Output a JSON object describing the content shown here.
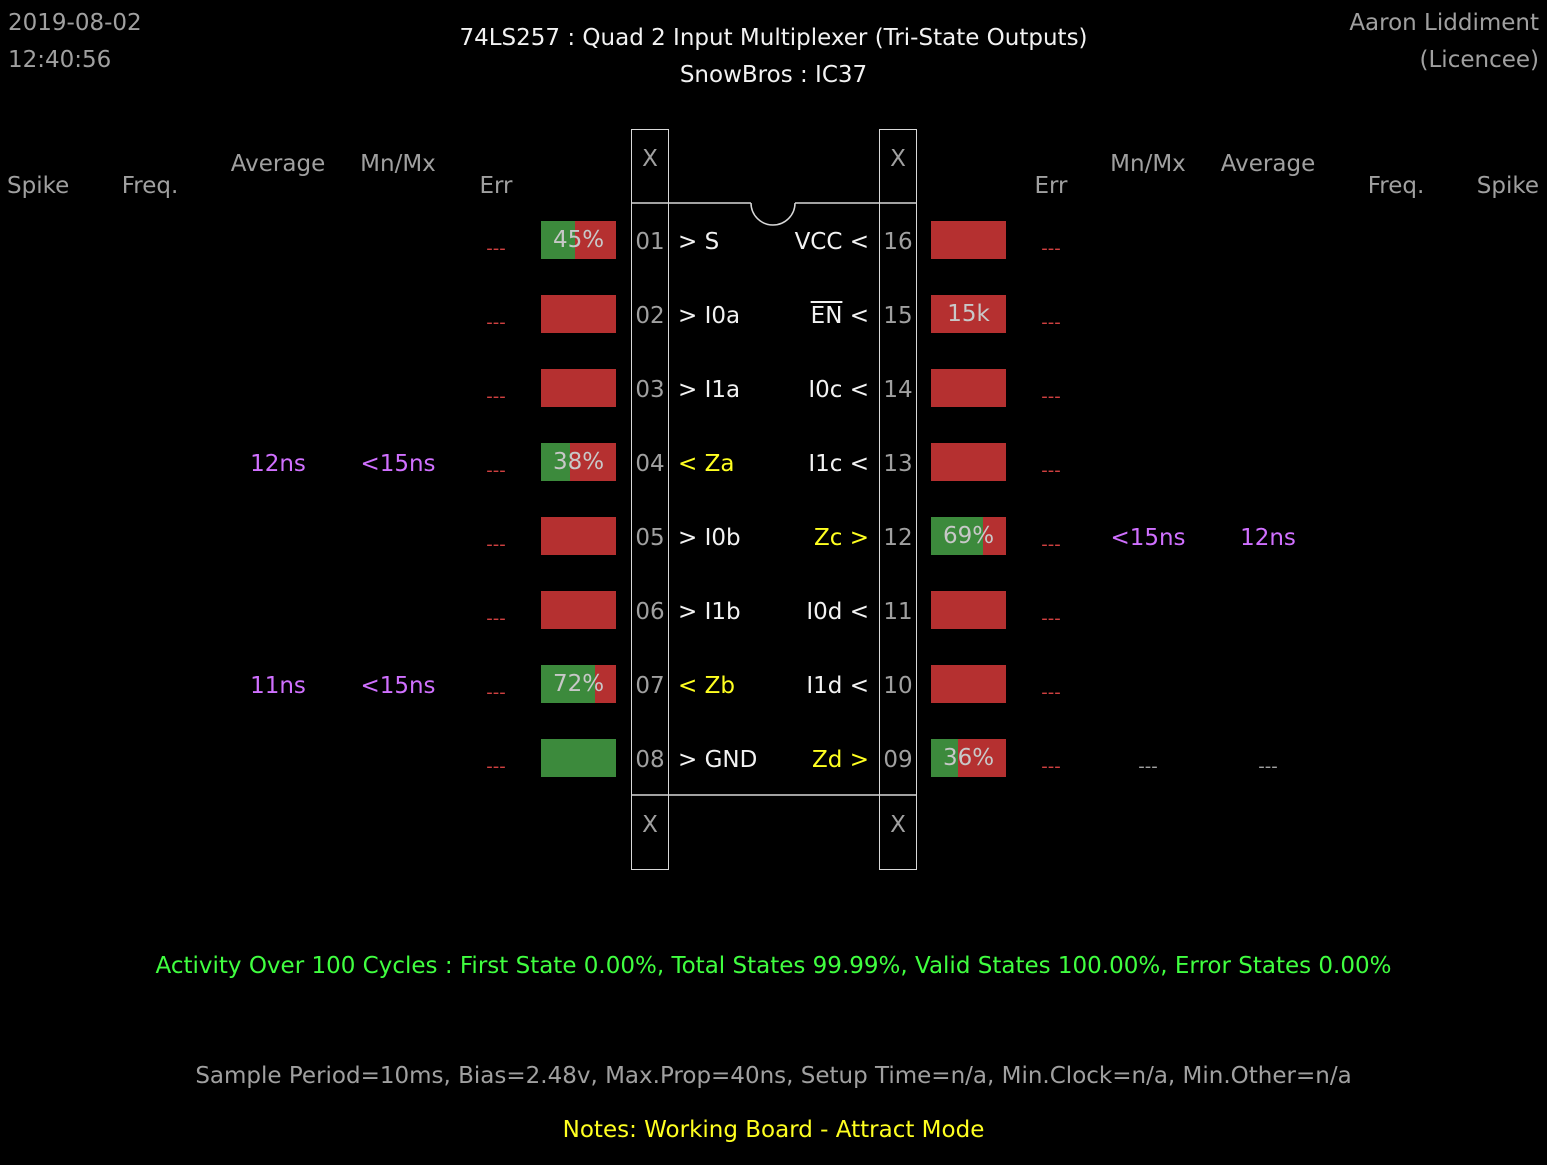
{
  "header": {
    "date": "2019-08-02",
    "time": "12:40:56",
    "title": "74LS257  :  Quad 2 Input Multiplexer (Tri-State Outputs)",
    "subtitle": "SnowBros : IC37",
    "author": "Aaron Liddiment",
    "licence": "(Licencee)"
  },
  "columns": {
    "left": [
      "Spike",
      "Freq.",
      "Average",
      "Mn/Mx",
      "Err"
    ],
    "right": [
      "Err",
      "Mn/Mx",
      "Average",
      "Freq.",
      "Spike"
    ]
  },
  "chip": {
    "top_left_x": "X",
    "top_right_x": "X",
    "bottom_left_x": "X",
    "bottom_right_x": "X"
  },
  "left_pins": [
    {
      "num": "01",
      "label": "> S",
      "err": "---",
      "avg": "",
      "mnmx": "",
      "bar_text": "45%",
      "fill": 0.45,
      "output": false
    },
    {
      "num": "02",
      "label": "> I0a",
      "err": "---",
      "avg": "",
      "mnmx": "",
      "bar_text": "",
      "fill": 0,
      "output": false
    },
    {
      "num": "03",
      "label": "> I1a",
      "err": "---",
      "avg": "",
      "mnmx": "",
      "bar_text": "",
      "fill": 0,
      "output": false
    },
    {
      "num": "04",
      "label": "< Za",
      "err": "---",
      "avg": "12ns",
      "mnmx": "<15ns",
      "bar_text": "38%",
      "fill": 0.38,
      "output": true
    },
    {
      "num": "05",
      "label": "> I0b",
      "err": "---",
      "avg": "",
      "mnmx": "",
      "bar_text": "",
      "fill": 0,
      "output": false
    },
    {
      "num": "06",
      "label": "> I1b",
      "err": "---",
      "avg": "",
      "mnmx": "",
      "bar_text": "",
      "fill": 0,
      "output": false
    },
    {
      "num": "07",
      "label": "< Zb",
      "err": "---",
      "avg": "11ns",
      "mnmx": "<15ns",
      "bar_text": "72%",
      "fill": 0.72,
      "output": true
    },
    {
      "num": "08",
      "label": "> GND",
      "err": "---",
      "avg": "",
      "mnmx": "",
      "bar_text": "",
      "fill": 1.0,
      "output": false
    }
  ],
  "right_pins": [
    {
      "num": "16",
      "label": "VCC <",
      "err": "---",
      "avg": "",
      "mnmx": "",
      "bar_text": "",
      "fill": 0,
      "output": false,
      "overline": false
    },
    {
      "num": "15",
      "label": "EN",
      "suffix": " <",
      "err": "---",
      "avg": "",
      "mnmx": "",
      "bar_text": "15k",
      "fill": 0,
      "output": false,
      "overline": true
    },
    {
      "num": "14",
      "label": "I0c <",
      "err": "---",
      "avg": "",
      "mnmx": "",
      "bar_text": "",
      "fill": 0,
      "output": false,
      "overline": false
    },
    {
      "num": "13",
      "label": "I1c <",
      "err": "---",
      "avg": "",
      "mnmx": "",
      "bar_text": "",
      "fill": 0,
      "output": false,
      "overline": false
    },
    {
      "num": "12",
      "label": "Zc >",
      "err": "---",
      "avg": "12ns",
      "mnmx": "<15ns",
      "bar_text": "69%",
      "fill": 0.69,
      "output": true,
      "overline": false
    },
    {
      "num": "11",
      "label": "I0d <",
      "err": "---",
      "avg": "",
      "mnmx": "",
      "bar_text": "",
      "fill": 0,
      "output": false,
      "overline": false
    },
    {
      "num": "10",
      "label": "I1d <",
      "err": "---",
      "avg": "",
      "mnmx": "",
      "bar_text": "",
      "fill": 0,
      "output": false,
      "overline": false
    },
    {
      "num": "09",
      "label": "Zd >",
      "err": "---",
      "avg": "---",
      "mnmx": "---",
      "bar_text": "36%",
      "fill": 0.36,
      "output": true,
      "overline": false
    }
  ],
  "activity": "Activity Over 100 Cycles  :  First State 0.00%,  Total States 99.99%,  Valid States 100.00%,  Error States 0.00%",
  "params": "Sample Period=10ms,  Bias=2.48v,  Max.Prop=40ns,  Setup Time=n/a,  Min.Clock=n/a,  Min.Other=n/a",
  "notes": "Notes:  Working Board - Attract Mode",
  "colors": {
    "bar_red": "#b53030",
    "bar_green": "#3c8a3c",
    "output_label": "#ffff20",
    "timing": "#d070ff",
    "activity": "#40ff40"
  }
}
